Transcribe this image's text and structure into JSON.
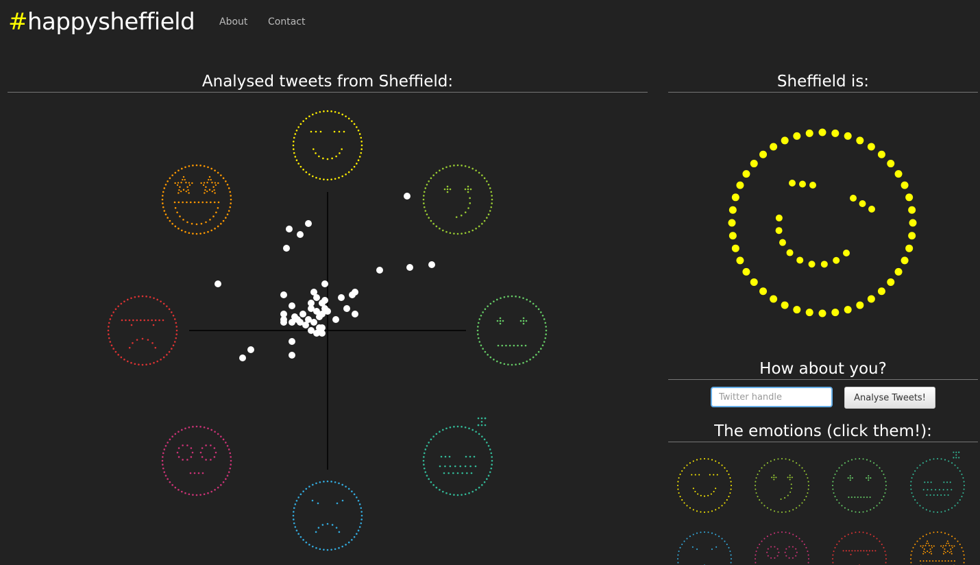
{
  "navbar": {
    "brand_hash": "#",
    "brand_name": "happysheffield",
    "links": [
      "About",
      "Contact"
    ]
  },
  "main": {
    "analysed_heading": "Analysed tweets from Sheffield:",
    "city_heading": "Sheffield is:",
    "you_heading": "How about you?",
    "emotions_heading": "The emotions (click them!):"
  },
  "form": {
    "placeholder": "Twitter handle",
    "button_label": "Analyse Tweets!"
  },
  "colors": {
    "background": "#222222",
    "happy": "#ffee00",
    "proud": "#99cc33",
    "calm": "#66cc66",
    "sleepy": "#33bb99",
    "sad": "#33aadd",
    "surprised": "#cc3377",
    "angry": "#dd3333",
    "excited": "#ff9900",
    "big_face": "#ffff00"
  },
  "icons": {
    "faces": [
      "happy-face-icon",
      "proud-face-icon",
      "calm-face-icon",
      "sleepy-face-icon",
      "sad-face-icon",
      "surprised-face-icon",
      "angry-face-icon",
      "excited-face-icon"
    ],
    "big_face": "winking-face-icon"
  },
  "chart_data": {
    "type": "scatter",
    "points": [
      [
        0.29,
        0.49
      ],
      [
        -0.07,
        0.39
      ],
      [
        -0.1,
        0.35
      ],
      [
        -0.14,
        0.37
      ],
      [
        -0.15,
        0.3
      ],
      [
        -0.4,
        0.17
      ],
      [
        0.19,
        0.22
      ],
      [
        0.3,
        0.23
      ],
      [
        0.38,
        0.24
      ],
      [
        0.09,
        0.13
      ],
      [
        0.1,
        0.14
      ],
      [
        -0.01,
        0.17
      ],
      [
        0.05,
        0.12
      ],
      [
        -0.05,
        0.14
      ],
      [
        -0.04,
        0.12
      ],
      [
        -0.06,
        0.1
      ],
      [
        -0.02,
        0.1
      ],
      [
        -0.01,
        0.11
      ],
      [
        -0.01,
        0.08
      ],
      [
        -0.16,
        0.13
      ],
      [
        -0.13,
        0.09
      ],
      [
        -0.16,
        0.06
      ],
      [
        -0.12,
        0.05
      ],
      [
        -0.11,
        0.04
      ],
      [
        -0.06,
        0.08
      ],
      [
        -0.09,
        0.06
      ],
      [
        -0.02,
        0.06
      ],
      [
        0.0,
        0.07
      ],
      [
        -0.03,
        0.05
      ],
      [
        0.03,
        0.04
      ],
      [
        -0.05,
        0.03
      ],
      [
        -0.07,
        0.04
      ],
      [
        -0.16,
        0.03
      ],
      [
        -0.16,
        0.04
      ],
      [
        -0.1,
        0.03
      ],
      [
        -0.08,
        0.02
      ],
      [
        -0.03,
        0.01
      ],
      [
        -0.02,
        0.01
      ],
      [
        -0.06,
        0.0
      ],
      [
        -0.04,
        -0.01
      ],
      [
        -0.02,
        -0.01
      ],
      [
        -0.13,
        0.03
      ],
      [
        -0.04,
        0.07
      ],
      [
        0.07,
        0.08
      ],
      [
        0.1,
        0.06
      ],
      [
        -0.13,
        -0.04
      ],
      [
        -0.13,
        -0.09
      ],
      [
        -0.28,
        -0.07
      ],
      [
        -0.31,
        -0.1
      ]
    ]
  }
}
